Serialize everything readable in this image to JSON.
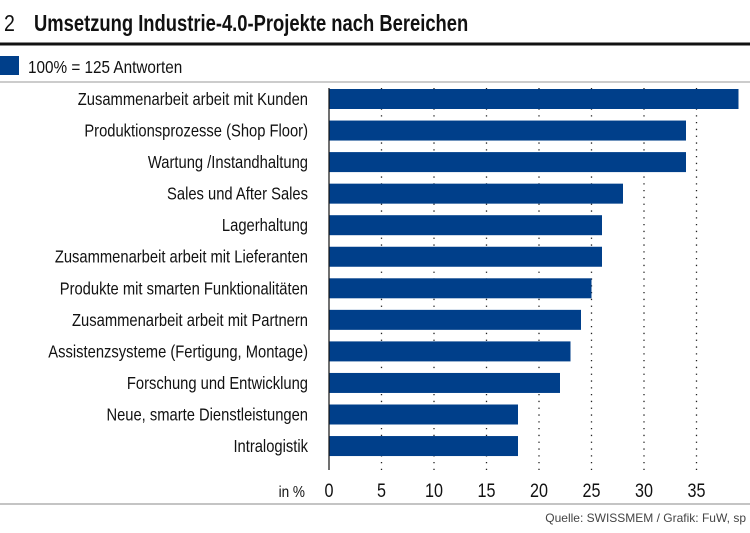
{
  "header": {
    "number": "2",
    "title": "Umsetzung Industrie-4.0-Projekte nach Bereichen"
  },
  "legend": {
    "label": "100% = 125 Antworten",
    "color": "#003f8a"
  },
  "source": "Quelle: SWISSMEM / Grafik: FuW, sp",
  "chart_data": {
    "type": "bar",
    "orientation": "horizontal",
    "categories": [
      "Zusammenarbeit arbeit mit Kunden",
      "Produktionsprozesse (Shop Floor)",
      "Wartung /Instandhaltung",
      "Sales und After Sales",
      "Lagerhaltung",
      "Zusammenarbeit arbeit mit Lieferanten",
      "Produkte mit smarten Funktionalitäten",
      "Zusammenarbeit arbeit mit Partnern",
      "Assistenzsysteme (Fertigung, Montage)",
      "Forschung und Entwicklung",
      "Neue, smarte Dienstleistungen",
      "Intralogistik"
    ],
    "values": [
      39,
      34,
      34,
      28,
      26,
      26,
      25,
      24,
      23,
      22,
      18,
      18
    ],
    "xlabel": "in %",
    "xlim": [
      0,
      39
    ],
    "xticks": [
      "0",
      "5",
      "10",
      "15",
      "20",
      "25",
      "30",
      "35"
    ],
    "grid": "vertical dotted",
    "bar_color": "#003f8a"
  }
}
